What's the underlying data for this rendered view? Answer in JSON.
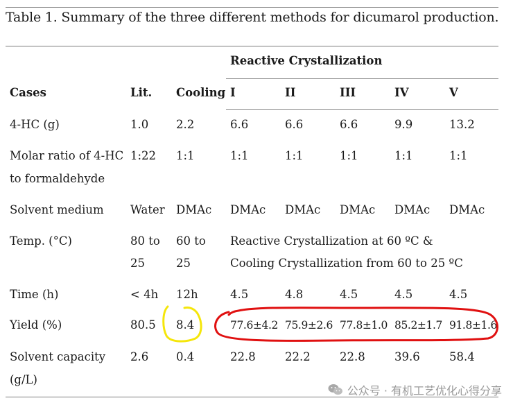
{
  "caption": "Table 1. Summary of the three different methods for dicumarol production.",
  "table": {
    "group_header": "Reactive Crystallization",
    "headers": [
      "Cases",
      "Lit.",
      "Cooling",
      "I",
      "II",
      "III",
      "IV",
      "V"
    ],
    "rows": [
      {
        "label": [
          "4-HC (g)"
        ],
        "cells": [
          "1.0",
          "2.2",
          "6.6",
          "6.6",
          "6.6",
          "9.9",
          "13.2"
        ]
      },
      {
        "label": [
          "Molar ratio of 4-HC",
          "to formaldehyde"
        ],
        "cells": [
          "1:22",
          "1:1",
          "1:1",
          "1:1",
          "1:1",
          "1:1",
          "1:1"
        ]
      },
      {
        "label": [
          "Solvent medium"
        ],
        "cells": [
          "Water",
          "DMAc",
          "DMAc",
          "DMAc",
          "DMAc",
          "DMAc",
          "DMAc"
        ]
      },
      {
        "label": [
          "Temp. (°C)"
        ],
        "lit": [
          "80 to",
          "25"
        ],
        "cooling": [
          "60 to",
          "25"
        ],
        "merged": [
          "Reactive Crystallization at 60 ºC &",
          "Cooling Crystallization from 60 to 25 ºC"
        ]
      },
      {
        "label": [
          "Time (h)"
        ],
        "cells": [
          "< 4h",
          "12h",
          "4.5",
          "4.8",
          "4.5",
          "4.5",
          "4.5"
        ]
      },
      {
        "label": [
          "Yield (%)"
        ],
        "cells": [
          "80.5",
          "8.4",
          "77.6±4.2",
          "75.9±2.6",
          "77.8±1.0",
          "85.2±1.7",
          "91.8±1.6"
        ]
      },
      {
        "label": [
          "Solvent capacity",
          "(g/L)"
        ],
        "cells": [
          "2.6",
          "0.4",
          "22.8",
          "22.2",
          "22.8",
          "39.6",
          "58.4"
        ]
      }
    ]
  },
  "annotations": {
    "yellow_color": "#f5e60a",
    "red_color": "#e01010"
  },
  "watermark": {
    "icon": "wechat-icon",
    "text": "公众号 · 有机工艺优化心得分享"
  }
}
